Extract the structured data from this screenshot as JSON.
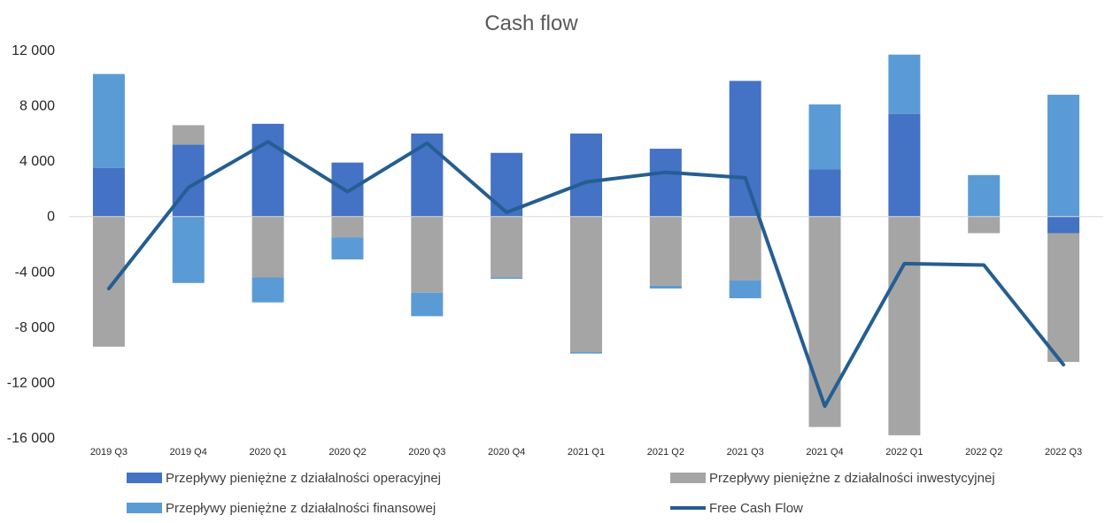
{
  "chart_data": {
    "type": "bar",
    "stacked": true,
    "title": "Cash flow",
    "xlabel": "",
    "ylabel": "",
    "ylim": [
      -16000,
      12000
    ],
    "yticks": [
      12000,
      8000,
      4000,
      0,
      -4000,
      -8000,
      -12000,
      -16000
    ],
    "ytick_labels": [
      "12 000",
      "8 000",
      "4 000",
      "0",
      "-4 000",
      "-8 000",
      "-12 000",
      "-16 000"
    ],
    "grid": false,
    "legend_position": "bottom",
    "categories": [
      "2019 Q3",
      "2019 Q4",
      "2020 Q1",
      "2020 Q2",
      "2020 Q3",
      "2020 Q4",
      "2021 Q1",
      "2021 Q2",
      "2021 Q3",
      "2021 Q4",
      "2022 Q1",
      "2022 Q2",
      "2022 Q3"
    ],
    "series": [
      {
        "name": "Przepływy pieniężne z działalności operacyjnej",
        "type": "bar",
        "color": "#4472c4",
        "values": [
          3500,
          5200,
          6700,
          3900,
          6000,
          4600,
          6000,
          4900,
          9800,
          3400,
          7400,
          0,
          -1200
        ]
      },
      {
        "name": "Przepływy pieniężne z działalności inwestycyjnej",
        "type": "bar",
        "color": "#a5a5a5",
        "values": [
          -9400,
          1400,
          -4400,
          -1500,
          -5500,
          -4400,
          -9800,
          -5000,
          -4600,
          -15200,
          -15800,
          -1200,
          -9300
        ]
      },
      {
        "name": "Przepływy pieniężne z działalności finansowej",
        "type": "bar",
        "color": "#5b9bd5",
        "values": [
          6800,
          -4800,
          -1800,
          -1600,
          -1700,
          -100,
          -100,
          -200,
          -1300,
          4700,
          4300,
          3000,
          8800
        ]
      },
      {
        "name": "Free Cash Flow",
        "type": "line",
        "color": "#255e91",
        "values": [
          -5200,
          2100,
          5400,
          1800,
          5300,
          300,
          2500,
          3200,
          2800,
          -13700,
          -3400,
          -3500,
          -10700
        ]
      }
    ]
  }
}
